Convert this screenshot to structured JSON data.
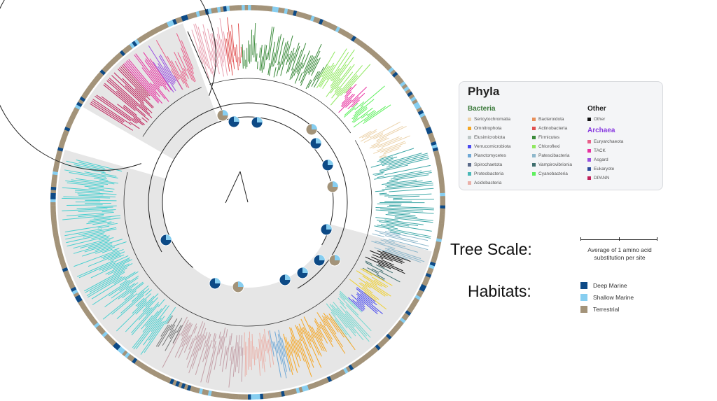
{
  "legend": {
    "title": "Phyla",
    "bacteria_label": "Bacteria",
    "bacteria_color": "#3c7a3c",
    "bacteria": [
      {
        "name": "Sericytochromatia",
        "color": "#ecd3ab"
      },
      {
        "name": "Omnitrophota",
        "color": "#f5a623"
      },
      {
        "name": "Elusimicrobiota",
        "color": "#bcc6c6"
      },
      {
        "name": "Verrucomicrobiota",
        "color": "#4a4af0"
      },
      {
        "name": "Planctomycetes",
        "color": "#6fa8d6"
      },
      {
        "name": "Spirochaetota",
        "color": "#5a6a8a"
      },
      {
        "name": "Proteobacteria",
        "color": "#4bb8b8"
      },
      {
        "name": "Acidobacteria",
        "color": "#eab0a8"
      },
      {
        "name": "Bacteroidota",
        "color": "#e8905a"
      },
      {
        "name": "Actinobacteria",
        "color": "#e05050"
      },
      {
        "name": "Firmicutes",
        "color": "#3a8a3a"
      },
      {
        "name": "Chloroflexi",
        "color": "#90e860"
      },
      {
        "name": "Patescibacteria",
        "color": "#8fb8cc"
      },
      {
        "name": "Vampirovibrionia",
        "color": "#3f6e6e"
      },
      {
        "name": "Cyanobacteria",
        "color": "#5ef05e"
      }
    ],
    "other_label": "Other",
    "other": [
      {
        "name": "Other",
        "color": "#111111"
      }
    ],
    "archaea_label": "Archaea",
    "archaea_color": "#8a3ee0",
    "archaea": [
      {
        "name": "Euryarchaeota",
        "color": "#e8608a"
      },
      {
        "name": "TACK",
        "color": "#e830a0"
      },
      {
        "name": "Asgard",
        "color": "#9a50e0"
      },
      {
        "name": "Eukaryote",
        "color": "#2a4a9a"
      },
      {
        "name": "DPANN",
        "color": "#c0205a"
      }
    ]
  },
  "tree_scale": {
    "label": "Tree Scale:",
    "description_line1": "Average of 1 amino acid",
    "description_line2": "substitution per site"
  },
  "habitats": {
    "label": "Habitats:",
    "items": [
      {
        "name": "Deep Marine",
        "color": "#0d4a86"
      },
      {
        "name": "Shallow Marine",
        "color": "#87cef0"
      },
      {
        "name": "Terrestrial",
        "color": "#a39379"
      }
    ]
  }
}
